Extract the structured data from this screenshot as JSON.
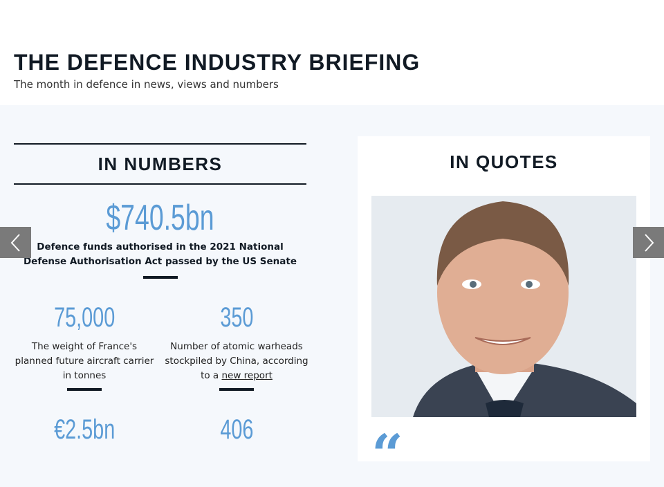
{
  "header": {
    "title": "THE DEFENCE INDUSTRY BRIEFING",
    "subtitle": "The month in defence in news, views and numbers"
  },
  "numbers": {
    "heading": "IN NUMBERS",
    "featured": {
      "value": "$740.5bn",
      "description": "Defence funds authorised in the 2021 National Defense Authorisation Act passed by the US Senate"
    },
    "stats": [
      {
        "value": "75,000",
        "description": "The weight of France's planned future aircraft carrier in tonnes"
      },
      {
        "value": "350",
        "description": "Number of atomic warheads stockpiled by China, according to a",
        "link": "new report"
      },
      {
        "value": "€2.5bn"
      },
      {
        "value": "406"
      }
    ]
  },
  "quotes": {
    "heading": "IN QUOTES",
    "quote_mark": "“"
  },
  "colors": {
    "accent": "#5b9bd5",
    "dark": "#111a24",
    "arrow_bg": "#7a7a7a"
  },
  "icons": {
    "prev": "chevron-left-icon",
    "next": "chevron-right-icon"
  }
}
